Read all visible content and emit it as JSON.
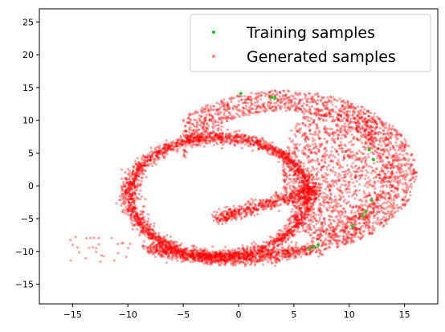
{
  "chart_data": {
    "type": "scatter",
    "xlim": [
      -18,
      18
    ],
    "ylim": [
      -18,
      27
    ],
    "x_ticks": [
      -15,
      -10,
      -5,
      0,
      5,
      10,
      15
    ],
    "y_ticks": [
      -15,
      -10,
      -5,
      0,
      5,
      10,
      15,
      20,
      25
    ],
    "grid": false,
    "legend_position": "top-right",
    "series": [
      {
        "name": "Training samples",
        "color": "#22cc22",
        "points": [
          [
            0.2,
            14.1
          ],
          [
            3.0,
            13.5
          ],
          [
            3.3,
            13.4
          ],
          [
            7.2,
            -9.0
          ],
          [
            6.8,
            -9.3
          ],
          [
            6.4,
            -9.6
          ],
          [
            10.3,
            -6.1
          ],
          [
            11.2,
            -4.6
          ],
          [
            11.5,
            -4.0
          ],
          [
            12.0,
            -2.2
          ],
          [
            12.2,
            4.0
          ],
          [
            11.8,
            5.5
          ]
        ]
      },
      {
        "name": "Generated samples",
        "color": "#ff0000",
        "description_of_shape": "dense ring centered near (-2, -1), thick band on lower-left, upper arc extending to a lobe reaching x≈13, sparse tail toward (-15, -7)",
        "points": []
      }
    ]
  }
}
